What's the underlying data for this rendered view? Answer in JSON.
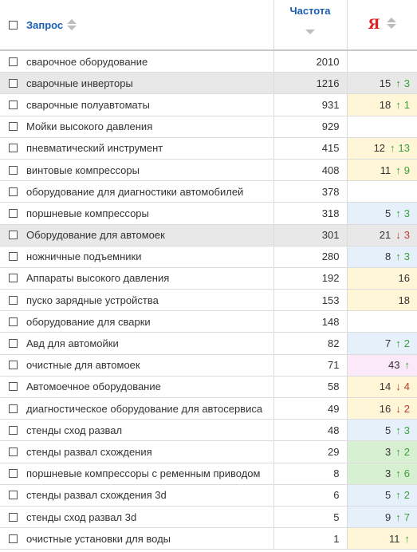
{
  "header": {
    "query_label": "Запрос",
    "frequency_label": "Частота",
    "engine_label": "Я"
  },
  "colors": {
    "link": "#1a5fb4",
    "engine": "#e02020",
    "up": "#3aa13a",
    "down": "#c0392b",
    "yellow": "#fef6d6",
    "blue": "#e6f0fb",
    "green": "#d8f0d2",
    "pink": "#fbe8f8",
    "highlight_row": "#e8e8e8"
  },
  "rows": [
    {
      "query": "сварочное оборудование",
      "freq": "2010",
      "pos": "",
      "dir": "",
      "delta": "",
      "bg": "",
      "highlight": false
    },
    {
      "query": "сварочные инверторы",
      "freq": "1216",
      "pos": "15",
      "dir": "up",
      "delta": "3",
      "bg": "",
      "highlight": true
    },
    {
      "query": "сварочные полуавтоматы",
      "freq": "931",
      "pos": "18",
      "dir": "up",
      "delta": "1",
      "bg": "yellow",
      "highlight": false
    },
    {
      "query": "Мойки высокого давления",
      "freq": "929",
      "pos": "",
      "dir": "",
      "delta": "",
      "bg": "",
      "highlight": false
    },
    {
      "query": "пневматический инструмент",
      "freq": "415",
      "pos": "12",
      "dir": "up",
      "delta": "13",
      "bg": "yellow",
      "highlight": false
    },
    {
      "query": "винтовые компрессоры",
      "freq": "408",
      "pos": "11",
      "dir": "up",
      "delta": "9",
      "bg": "yellow",
      "highlight": false
    },
    {
      "query": "оборудование для диагностики автомобилей",
      "freq": "378",
      "pos": "",
      "dir": "",
      "delta": "",
      "bg": "",
      "highlight": false
    },
    {
      "query": "поршневые компрессоры",
      "freq": "318",
      "pos": "5",
      "dir": "up",
      "delta": "3",
      "bg": "blue",
      "highlight": false
    },
    {
      "query": "Оборудование для автомоек",
      "freq": "301",
      "pos": "21",
      "dir": "down",
      "delta": "3",
      "bg": "",
      "highlight": true
    },
    {
      "query": "ножничные подъемники",
      "freq": "280",
      "pos": "8",
      "dir": "up",
      "delta": "3",
      "bg": "blue",
      "highlight": false
    },
    {
      "query": "Аппараты высокого давления",
      "freq": "192",
      "pos": "16",
      "dir": "",
      "delta": "",
      "bg": "yellow",
      "highlight": false
    },
    {
      "query": "пуско зарядные устройства",
      "freq": "153",
      "pos": "18",
      "dir": "",
      "delta": "",
      "bg": "yellow",
      "highlight": false
    },
    {
      "query": "оборудование для сварки",
      "freq": "148",
      "pos": "",
      "dir": "",
      "delta": "",
      "bg": "",
      "highlight": false
    },
    {
      "query": "Авд для автомойки",
      "freq": "82",
      "pos": "7",
      "dir": "up",
      "delta": "2",
      "bg": "blue",
      "highlight": false
    },
    {
      "query": "очистные для автомоек",
      "freq": "71",
      "pos": "43",
      "dir": "up",
      "delta": "",
      "bg": "pink",
      "highlight": false
    },
    {
      "query": "Автомоечное оборудование",
      "freq": "58",
      "pos": "14",
      "dir": "down",
      "delta": "4",
      "bg": "yellow",
      "highlight": false
    },
    {
      "query": "диагностическое оборудование для автосервиса",
      "freq": "49",
      "pos": "16",
      "dir": "down",
      "delta": "2",
      "bg": "yellow",
      "highlight": false
    },
    {
      "query": "стенды сход развал",
      "freq": "48",
      "pos": "5",
      "dir": "up",
      "delta": "3",
      "bg": "blue",
      "highlight": false
    },
    {
      "query": "стенды развал схождения",
      "freq": "29",
      "pos": "3",
      "dir": "up",
      "delta": "2",
      "bg": "green",
      "highlight": false
    },
    {
      "query": "поршневые компрессоры с ременным приводом",
      "freq": "8",
      "pos": "3",
      "dir": "up",
      "delta": "6",
      "bg": "green",
      "highlight": false
    },
    {
      "query": "стенды развал схождения 3d",
      "freq": "6",
      "pos": "5",
      "dir": "up",
      "delta": "2",
      "bg": "blue",
      "highlight": false
    },
    {
      "query": "стенды сход развал 3d",
      "freq": "5",
      "pos": "9",
      "dir": "up",
      "delta": "7",
      "bg": "blue",
      "highlight": false
    },
    {
      "query": "очистные установки для воды",
      "freq": "1",
      "pos": "11",
      "dir": "up",
      "delta": "",
      "bg": "yellow",
      "highlight": false
    }
  ]
}
